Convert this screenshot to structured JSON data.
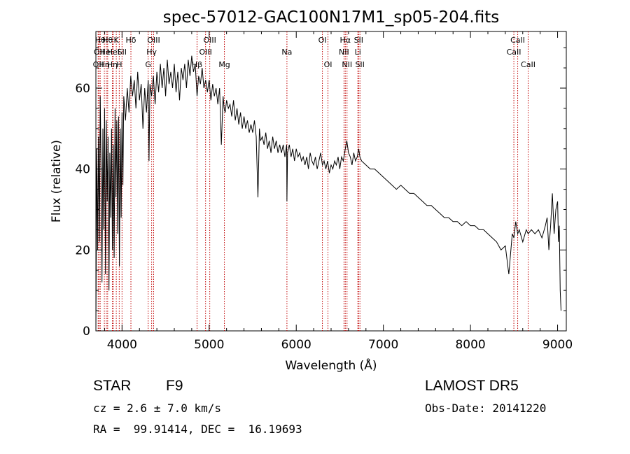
{
  "chart_data": {
    "type": "line",
    "title": "spec-57012-GAC100N17M1_sp05-204.fits",
    "xlabel": "Wavelength (Å)",
    "ylabel": "Flux (relative)",
    "xlim": [
      3700,
      9100
    ],
    "ylim": [
      0,
      74
    ],
    "xticks": [
      4000,
      5000,
      6000,
      7000,
      8000,
      9000
    ],
    "yticks": [
      0,
      20,
      40,
      60
    ],
    "grid": false,
    "series": [
      {
        "x": [
          3700,
          3710,
          3720,
          3730,
          3740,
          3750,
          3760,
          3770,
          3780,
          3790,
          3800,
          3810,
          3820,
          3830,
          3840,
          3850,
          3860,
          3870,
          3880,
          3890,
          3900,
          3910,
          3920,
          3930,
          3940,
          3950,
          3960,
          3970,
          3980,
          3990,
          4000,
          4010,
          4020,
          4040,
          4060,
          4080,
          4100,
          4120,
          4140,
          4160,
          4180,
          4200,
          4220,
          4240,
          4260,
          4280,
          4300,
          4310,
          4320,
          4340,
          4360,
          4380,
          4400,
          4420,
          4440,
          4460,
          4480,
          4500,
          4520,
          4540,
          4560,
          4580,
          4600,
          4620,
          4640,
          4660,
          4680,
          4700,
          4720,
          4740,
          4760,
          4780,
          4800,
          4820,
          4840,
          4861,
          4880,
          4900,
          4920,
          4940,
          4960,
          4980,
          5000,
          5020,
          5040,
          5060,
          5080,
          5100,
          5120,
          5140,
          5160,
          5172,
          5184,
          5200,
          5220,
          5240,
          5260,
          5280,
          5300,
          5320,
          5340,
          5360,
          5380,
          5400,
          5420,
          5440,
          5460,
          5480,
          5500,
          5520,
          5540,
          5560,
          5577,
          5590,
          5610,
          5630,
          5650,
          5670,
          5690,
          5710,
          5730,
          5750,
          5770,
          5790,
          5810,
          5830,
          5850,
          5870,
          5890,
          5893,
          5900,
          5920,
          5940,
          5960,
          5980,
          6000,
          6020,
          6040,
          6060,
          6080,
          6100,
          6120,
          6140,
          6160,
          6180,
          6200,
          6220,
          6240,
          6260,
          6280,
          6300,
          6320,
          6340,
          6360,
          6380,
          6400,
          6420,
          6440,
          6460,
          6480,
          6500,
          6520,
          6540,
          6563,
          6580,
          6600,
          6620,
          6640,
          6660,
          6680,
          6700,
          6717,
          6730,
          6750,
          6800,
          6850,
          6900,
          6950,
          7000,
          7050,
          7100,
          7150,
          7200,
          7250,
          7300,
          7350,
          7400,
          7450,
          7500,
          7550,
          7600,
          7650,
          7700,
          7750,
          7800,
          7850,
          7900,
          7950,
          8000,
          8050,
          8100,
          8150,
          8200,
          8250,
          8300,
          8350,
          8400,
          8440,
          8480,
          8498,
          8520,
          8542,
          8560,
          8600,
          8640,
          8662,
          8700,
          8740,
          8780,
          8820,
          8860,
          8880,
          8900,
          8920,
          8940,
          8960,
          8980,
          9000,
          9010,
          9020,
          9030,
          9040
        ],
        "y": [
          0,
          45,
          20,
          48,
          22,
          58,
          38,
          12,
          50,
          25,
          55,
          14,
          52,
          32,
          48,
          10,
          44,
          28,
          50,
          20,
          46,
          18,
          55,
          33,
          52,
          24,
          53,
          16,
          50,
          28,
          54,
          36,
          58,
          52,
          60,
          54,
          63,
          58,
          62,
          55,
          64,
          57,
          61,
          50,
          60,
          54,
          62,
          42,
          61,
          58,
          63,
          56,
          64,
          59,
          66,
          60,
          65,
          58,
          67,
          61,
          64,
          60,
          66,
          59,
          64,
          57,
          65,
          62,
          66,
          60,
          67,
          63,
          68,
          64,
          66,
          58,
          63,
          61,
          65,
          60,
          62,
          59,
          62,
          57,
          61,
          58,
          60,
          56,
          60,
          46,
          58,
          55,
          54,
          57,
          55,
          56,
          53,
          57,
          52,
          55,
          51,
          54,
          50,
          53,
          50,
          52,
          49,
          51,
          49,
          52,
          48,
          33,
          50,
          47,
          48,
          46,
          49,
          45,
          47,
          44,
          48,
          45,
          47,
          44,
          46,
          44,
          46,
          43,
          46,
          32,
          44,
          46,
          43,
          45,
          42,
          45,
          43,
          44,
          42,
          43,
          41,
          43,
          40,
          44,
          42,
          41,
          43,
          40,
          42,
          44,
          41,
          42,
          40,
          42,
          39,
          41,
          40,
          42,
          41,
          43,
          40,
          43,
          42,
          45,
          47,
          44,
          43,
          41,
          44,
          42,
          43,
          45,
          43,
          42,
          41,
          40,
          40,
          39,
          38,
          37,
          36,
          35,
          36,
          35,
          34,
          34,
          33,
          32,
          31,
          31,
          30,
          29,
          28,
          28,
          27,
          27,
          26,
          27,
          26,
          26,
          25,
          25,
          24,
          23,
          22,
          20,
          21,
          14,
          24,
          23,
          27,
          24,
          25,
          22,
          25,
          24,
          25,
          24,
          25,
          23,
          26,
          28,
          20,
          26,
          34,
          24,
          30,
          32,
          22,
          26,
          10,
          5
        ]
      }
    ],
    "lines": [
      {
        "x": 3726,
        "label": "OII",
        "row": 3
      },
      {
        "x": 3736,
        "label": "OII",
        "row": 2
      },
      {
        "x": 3750,
        "label": "Hθ",
        "row": 1
      },
      {
        "x": 3797,
        "label": "Hη",
        "row": 3
      },
      {
        "x": 3820,
        "label": "HeI",
        "row": 2
      },
      {
        "x": 3835,
        "label": "Hθ",
        "row": 1
      },
      {
        "x": 3889,
        "label": "Hη",
        "row": 3
      },
      {
        "x": 3900,
        "label": "HeI",
        "row": 2
      },
      {
        "x": 3934,
        "label": "K",
        "row": 1
      },
      {
        "x": 3968,
        "label": "H",
        "row": 3
      },
      {
        "x": 4000,
        "label": "SII",
        "row": 2
      },
      {
        "x": 4102,
        "label": "Hδ",
        "row": 1
      },
      {
        "x": 4300,
        "label": "G",
        "row": 3
      },
      {
        "x": 4340,
        "label": "Hγ",
        "row": 2
      },
      {
        "x": 4363,
        "label": "OIII",
        "row": 1
      },
      {
        "x": 4861,
        "label": "Hβ",
        "row": 3
      },
      {
        "x": 4959,
        "label": "OIII",
        "row": 2
      },
      {
        "x": 5007,
        "label": "OIII",
        "row": 1
      },
      {
        "x": 5175,
        "label": "Mg",
        "row": 3
      },
      {
        "x": 5893,
        "label": "Na",
        "row": 2
      },
      {
        "x": 6300,
        "label": "OI",
        "row": 1
      },
      {
        "x": 6364,
        "label": "OI",
        "row": 3
      },
      {
        "x": 6548,
        "label": "NII",
        "row": 2
      },
      {
        "x": 6563,
        "label": "Hα",
        "row": 1
      },
      {
        "x": 6583,
        "label": "NII",
        "row": 3
      },
      {
        "x": 6707,
        "label": "Li",
        "row": 2
      },
      {
        "x": 6716,
        "label": "SII",
        "row": 1
      },
      {
        "x": 6731,
        "label": "SII",
        "row": 3
      },
      {
        "x": 8498,
        "label": "CaII",
        "row": 2
      },
      {
        "x": 8542,
        "label": "CaII",
        "row": 1
      },
      {
        "x": 8662,
        "label": "CaII",
        "row": 3
      }
    ]
  },
  "info": {
    "class": "STAR",
    "subclass": "F9",
    "survey": "LAMOST DR5",
    "cz": "cz = 2.6 ± 7.0 km/s",
    "obsdate": "Obs-Date: 20141220",
    "radec": "RA =  99.91414, DEC =  16.19693"
  }
}
